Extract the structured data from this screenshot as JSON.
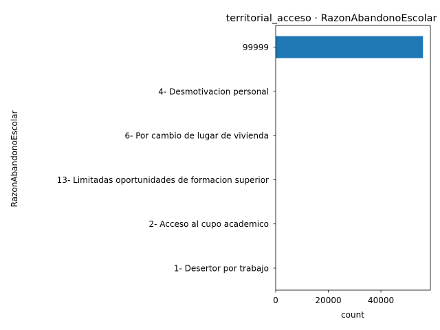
{
  "chart_data": {
    "type": "bar",
    "orientation": "horizontal",
    "title": "territorial_acceso · RazonAbandonoEscolar",
    "xlabel": "count",
    "ylabel": "RazonAbandonoEscolar",
    "categories": [
      "99999",
      "4- Desmotivacion personal",
      "6- Por cambio de lugar de vivienda",
      "13- Limitadas oportunidades de formacion superior",
      "2- Acceso al cupo academico",
      "1- Desertor por trabajo"
    ],
    "values": [
      56000,
      1,
      1,
      1,
      1,
      1
    ],
    "xlim": [
      0,
      58800
    ],
    "xticks": [
      0,
      20000,
      40000
    ],
    "xtick_labels": [
      "0",
      "20000",
      "40000"
    ],
    "bar_color": "#1f77b4",
    "grid": false,
    "legend": "none"
  }
}
